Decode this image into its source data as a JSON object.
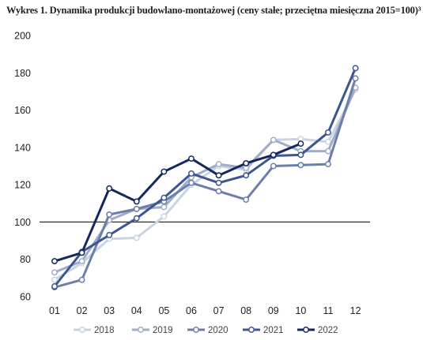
{
  "chart_data": {
    "type": "line",
    "title": "Wykres 1. Dynamika produkcji budowlano-montażowej (ceny stałe; przeciętna miesięczna 2015=100)³",
    "categories": [
      "01",
      "02",
      "03",
      "04",
      "05",
      "06",
      "07",
      "08",
      "09",
      "10",
      "11",
      "12"
    ],
    "ylim": [
      60,
      200
    ],
    "yticks": [
      60,
      80,
      100,
      120,
      140,
      160,
      180,
      200
    ],
    "reference_line": 100,
    "grid": false,
    "legend_position": "bottom",
    "series": [
      {
        "name": "2018",
        "color": "#c9d3e3",
        "values": [
          69,
          78,
          91,
          91.5,
          103,
          120,
          130,
          128,
          144,
          144.5,
          143,
          171
        ]
      },
      {
        "name": "2019",
        "color": "#9fadc9",
        "values": [
          73,
          79,
          101,
          107,
          108,
          124,
          131,
          129,
          144,
          138,
          138,
          172
        ]
      },
      {
        "name": "2020",
        "color": "#6c7fab",
        "values": [
          65,
          69,
          104,
          107,
          111,
          121,
          116.5,
          112,
          130,
          130.5,
          131,
          177
        ]
      },
      {
        "name": "2021",
        "color": "#3e5591",
        "values": [
          65.5,
          84,
          93,
          102,
          113,
          126,
          121,
          125,
          135.5,
          136,
          148,
          182.5
        ]
      },
      {
        "name": "2022",
        "color": "#14285f",
        "values": [
          79,
          83.5,
          118,
          111,
          127,
          134,
          125,
          131.5,
          136,
          142,
          null,
          null
        ]
      }
    ]
  }
}
